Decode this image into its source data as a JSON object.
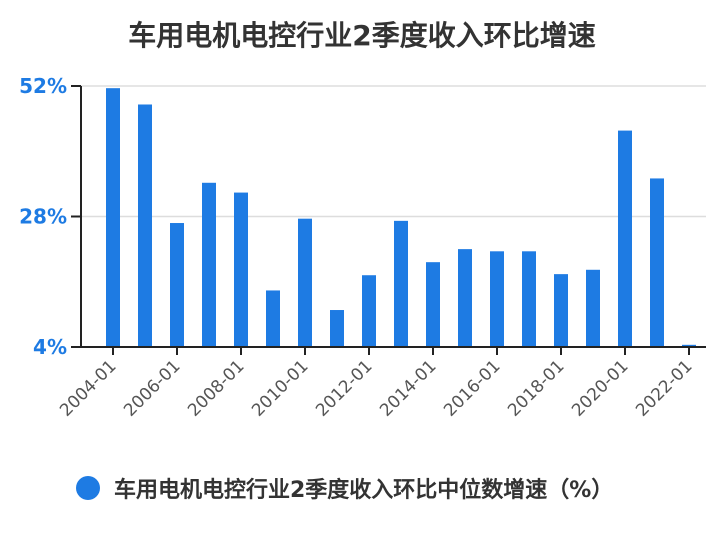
{
  "chart_data": {
    "type": "bar",
    "title": "车用电机电控行业2季度收入环比增速",
    "xlabel": "",
    "ylabel": "",
    "ylim": [
      4,
      52
    ],
    "yticks": [
      "52%",
      "28%",
      "4%"
    ],
    "ytick_values": [
      52,
      28,
      4
    ],
    "xtick_labels": [
      "2004-01",
      "2006-01",
      "2008-01",
      "2010-01",
      "2012-01",
      "2014-01",
      "2016-01",
      "2018-01",
      "2020-01",
      "2022-01"
    ],
    "categories": [
      "2004-01",
      "2005-01",
      "2006-01",
      "2007-01",
      "2008-01",
      "2009-01",
      "2010-01",
      "2011-01",
      "2012-01",
      "2013-01",
      "2014-01",
      "2015-01",
      "2016-01",
      "2017-01",
      "2018-01",
      "2019-01",
      "2020-01",
      "2021-01",
      "2022-01"
    ],
    "series": [
      {
        "name": "车用电机电控行业2季度收入环比中位数增速（%）",
        "color": "#1e7be3",
        "values": [
          51.6,
          48.6,
          26.8,
          34.2,
          32.4,
          14.4,
          27.6,
          10.8,
          17.2,
          27.2,
          19.6,
          22.0,
          21.6,
          21.6,
          17.4,
          18.2,
          43.8,
          35.0,
          4.4
        ]
      }
    ],
    "grid": true,
    "legend_position": "bottom"
  }
}
